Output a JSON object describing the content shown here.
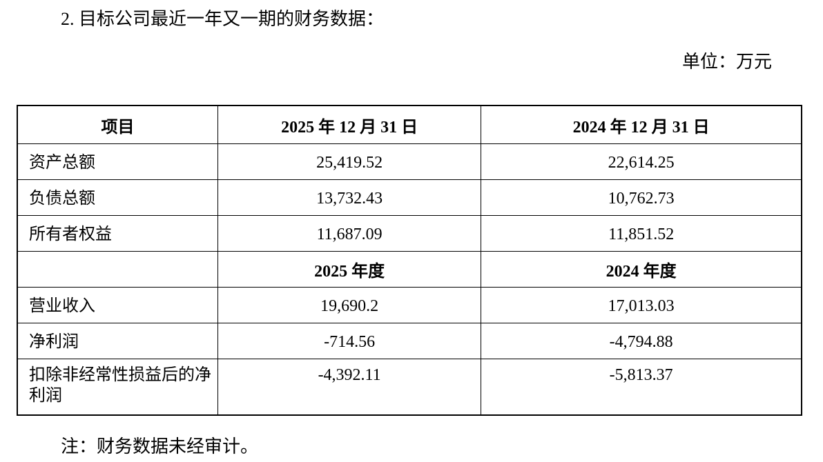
{
  "header": {
    "title": "2. 目标公司最近一年又一期的财务数据：",
    "unit": "单位：万元"
  },
  "table": {
    "columns": [
      "项目",
      "2025 年 12 月 31 日",
      "2024 年 12 月 31 日"
    ],
    "rows": [
      [
        "资产总额",
        "25,419.52",
        "22,614.25"
      ],
      [
        "负债总额",
        "13,732.43",
        "10,762.73"
      ],
      [
        "所有者权益",
        "11,687.09",
        "11,851.52"
      ]
    ],
    "subheader": [
      "2025 年度",
      "2024 年度"
    ],
    "rows2": [
      [
        "营业收入",
        "19,690.2",
        "17,013.03"
      ],
      [
        "净利润",
        "-714.56",
        "-4,794.88"
      ],
      [
        "扣除非经常性损益后的净利润",
        "-4,392.11",
        "-5,813.37"
      ]
    ]
  },
  "footer": {
    "note": "注：财务数据未经审计。"
  }
}
